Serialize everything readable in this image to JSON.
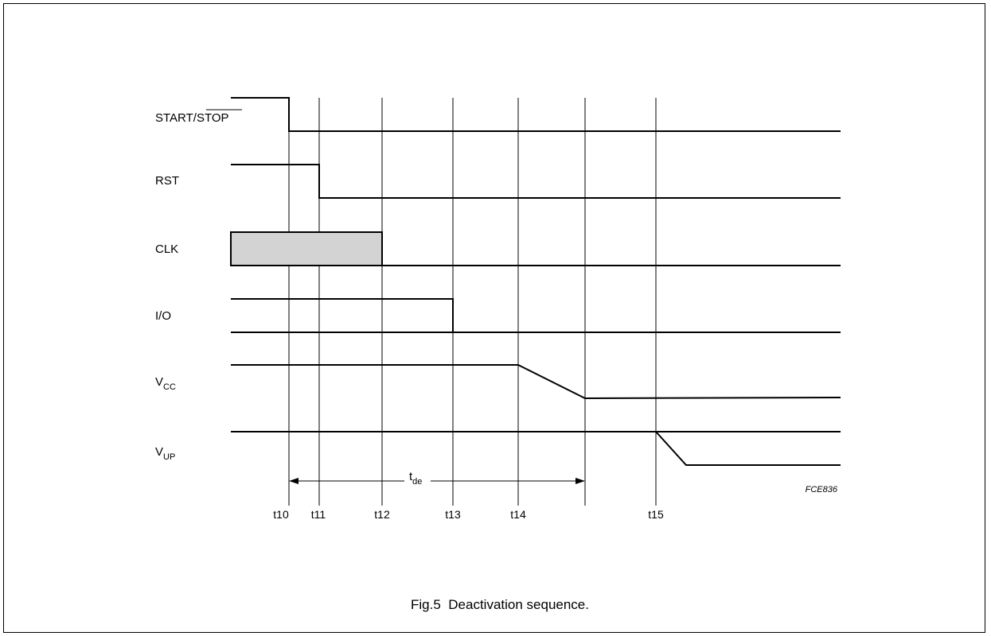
{
  "signals": {
    "start_stop": {
      "prefix": "START/",
      "overlined": "STOP"
    },
    "rst": "RST",
    "clk": "CLK",
    "io": "I/O",
    "vcc": {
      "base": "V",
      "sub": "CC"
    },
    "vup": {
      "base": "V",
      "sub": "UP"
    }
  },
  "timing_marks": [
    "t10",
    "t11",
    "t12",
    "t13",
    "t14",
    "t15"
  ],
  "interval": {
    "base": "t",
    "sub": "de"
  },
  "figure_code": "FCE836",
  "caption": "Fig.5  Deactivation sequence.",
  "colors": {
    "clk_fill": "#d3d3d3",
    "line": "#000000"
  }
}
